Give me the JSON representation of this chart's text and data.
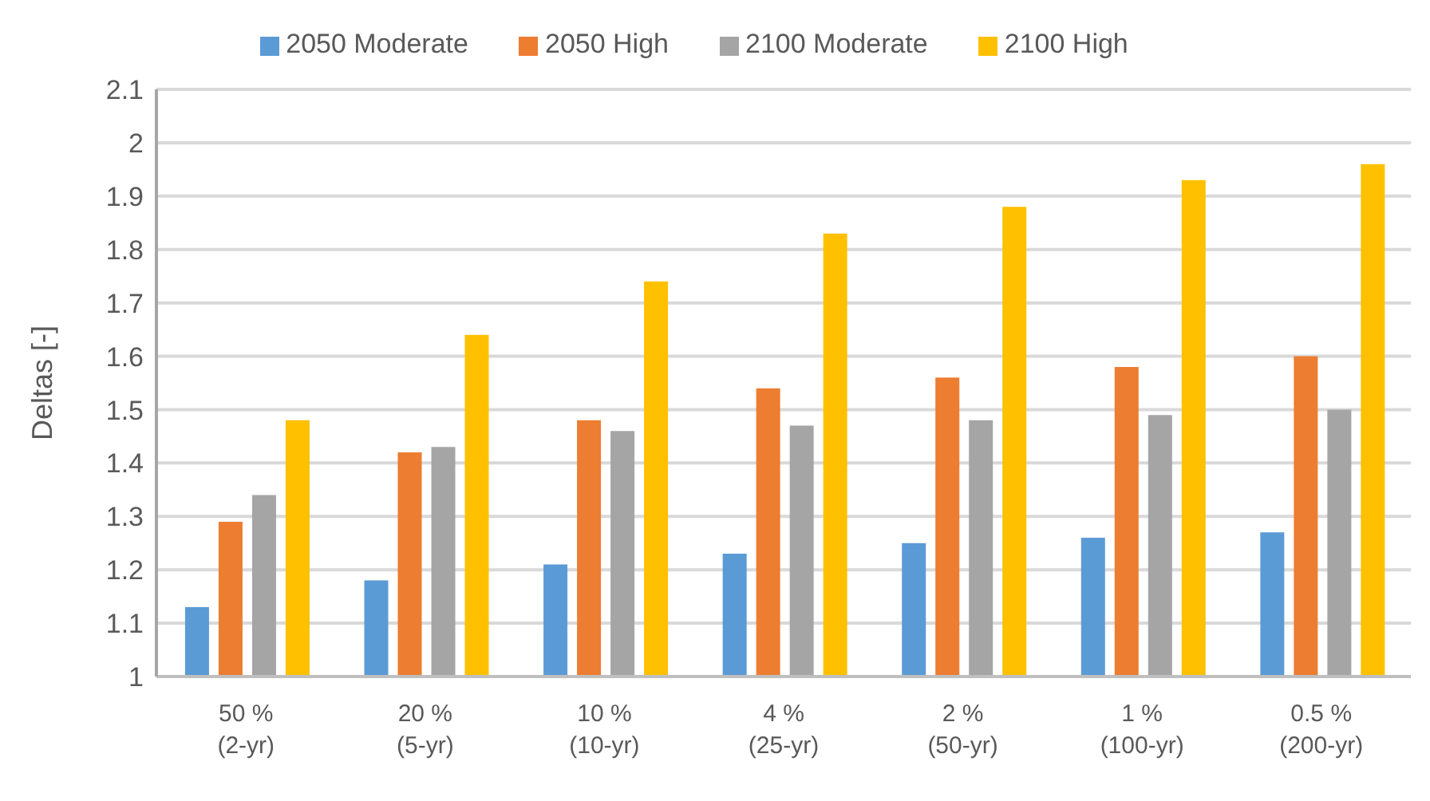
{
  "chart_data": {
    "type": "bar",
    "ylabel": "Deltas [-]",
    "categories": [
      "50 %\n(2-yr)",
      "20 %\n(5-yr)",
      "10 %\n(10-yr)",
      "4 %\n(25-yr)",
      "2 %\n(50-yr)",
      "1 %\n(100-yr)",
      "0.5 %\n(200-yr)"
    ],
    "series": [
      {
        "name": "2050 Moderate",
        "color": "#5b9bd5",
        "values": [
          1.13,
          1.18,
          1.21,
          1.23,
          1.25,
          1.26,
          1.27
        ]
      },
      {
        "name": "2050 High",
        "color": "#ed7d31",
        "values": [
          1.29,
          1.42,
          1.48,
          1.54,
          1.56,
          1.58,
          1.6
        ]
      },
      {
        "name": "2100 Moderate",
        "color": "#a5a5a5",
        "values": [
          1.34,
          1.43,
          1.46,
          1.47,
          1.48,
          1.49,
          1.5
        ]
      },
      {
        "name": "2100 High",
        "color": "#ffc000",
        "values": [
          1.48,
          1.64,
          1.74,
          1.83,
          1.88,
          1.93,
          1.96
        ]
      }
    ],
    "ylim": [
      1,
      2.1
    ],
    "yticks": [
      1,
      1.1,
      1.2,
      1.3,
      1.4,
      1.5,
      1.6,
      1.7,
      1.8,
      1.9,
      2,
      2.1
    ],
    "grid": "y",
    "legend": "top"
  }
}
